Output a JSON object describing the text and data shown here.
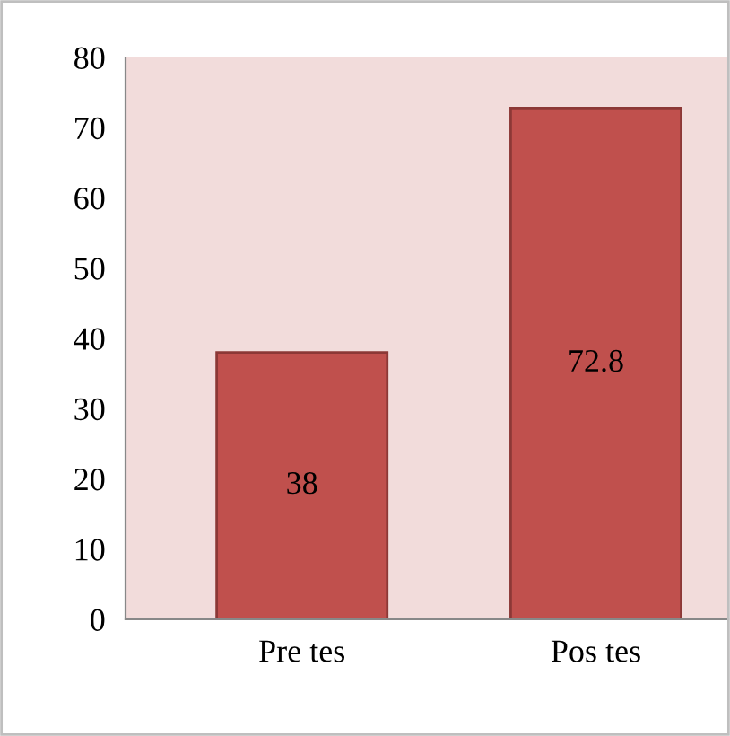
{
  "chart_data": {
    "type": "bar",
    "categories": [
      "Pre tes",
      "Pos tes"
    ],
    "values": [
      38,
      72.8
    ],
    "color": "#c0504d",
    "ylim": [
      0,
      80
    ],
    "yticks": [
      0,
      10,
      20,
      30,
      40,
      50,
      60,
      70,
      80
    ],
    "grid": false,
    "data_labels": true
  }
}
